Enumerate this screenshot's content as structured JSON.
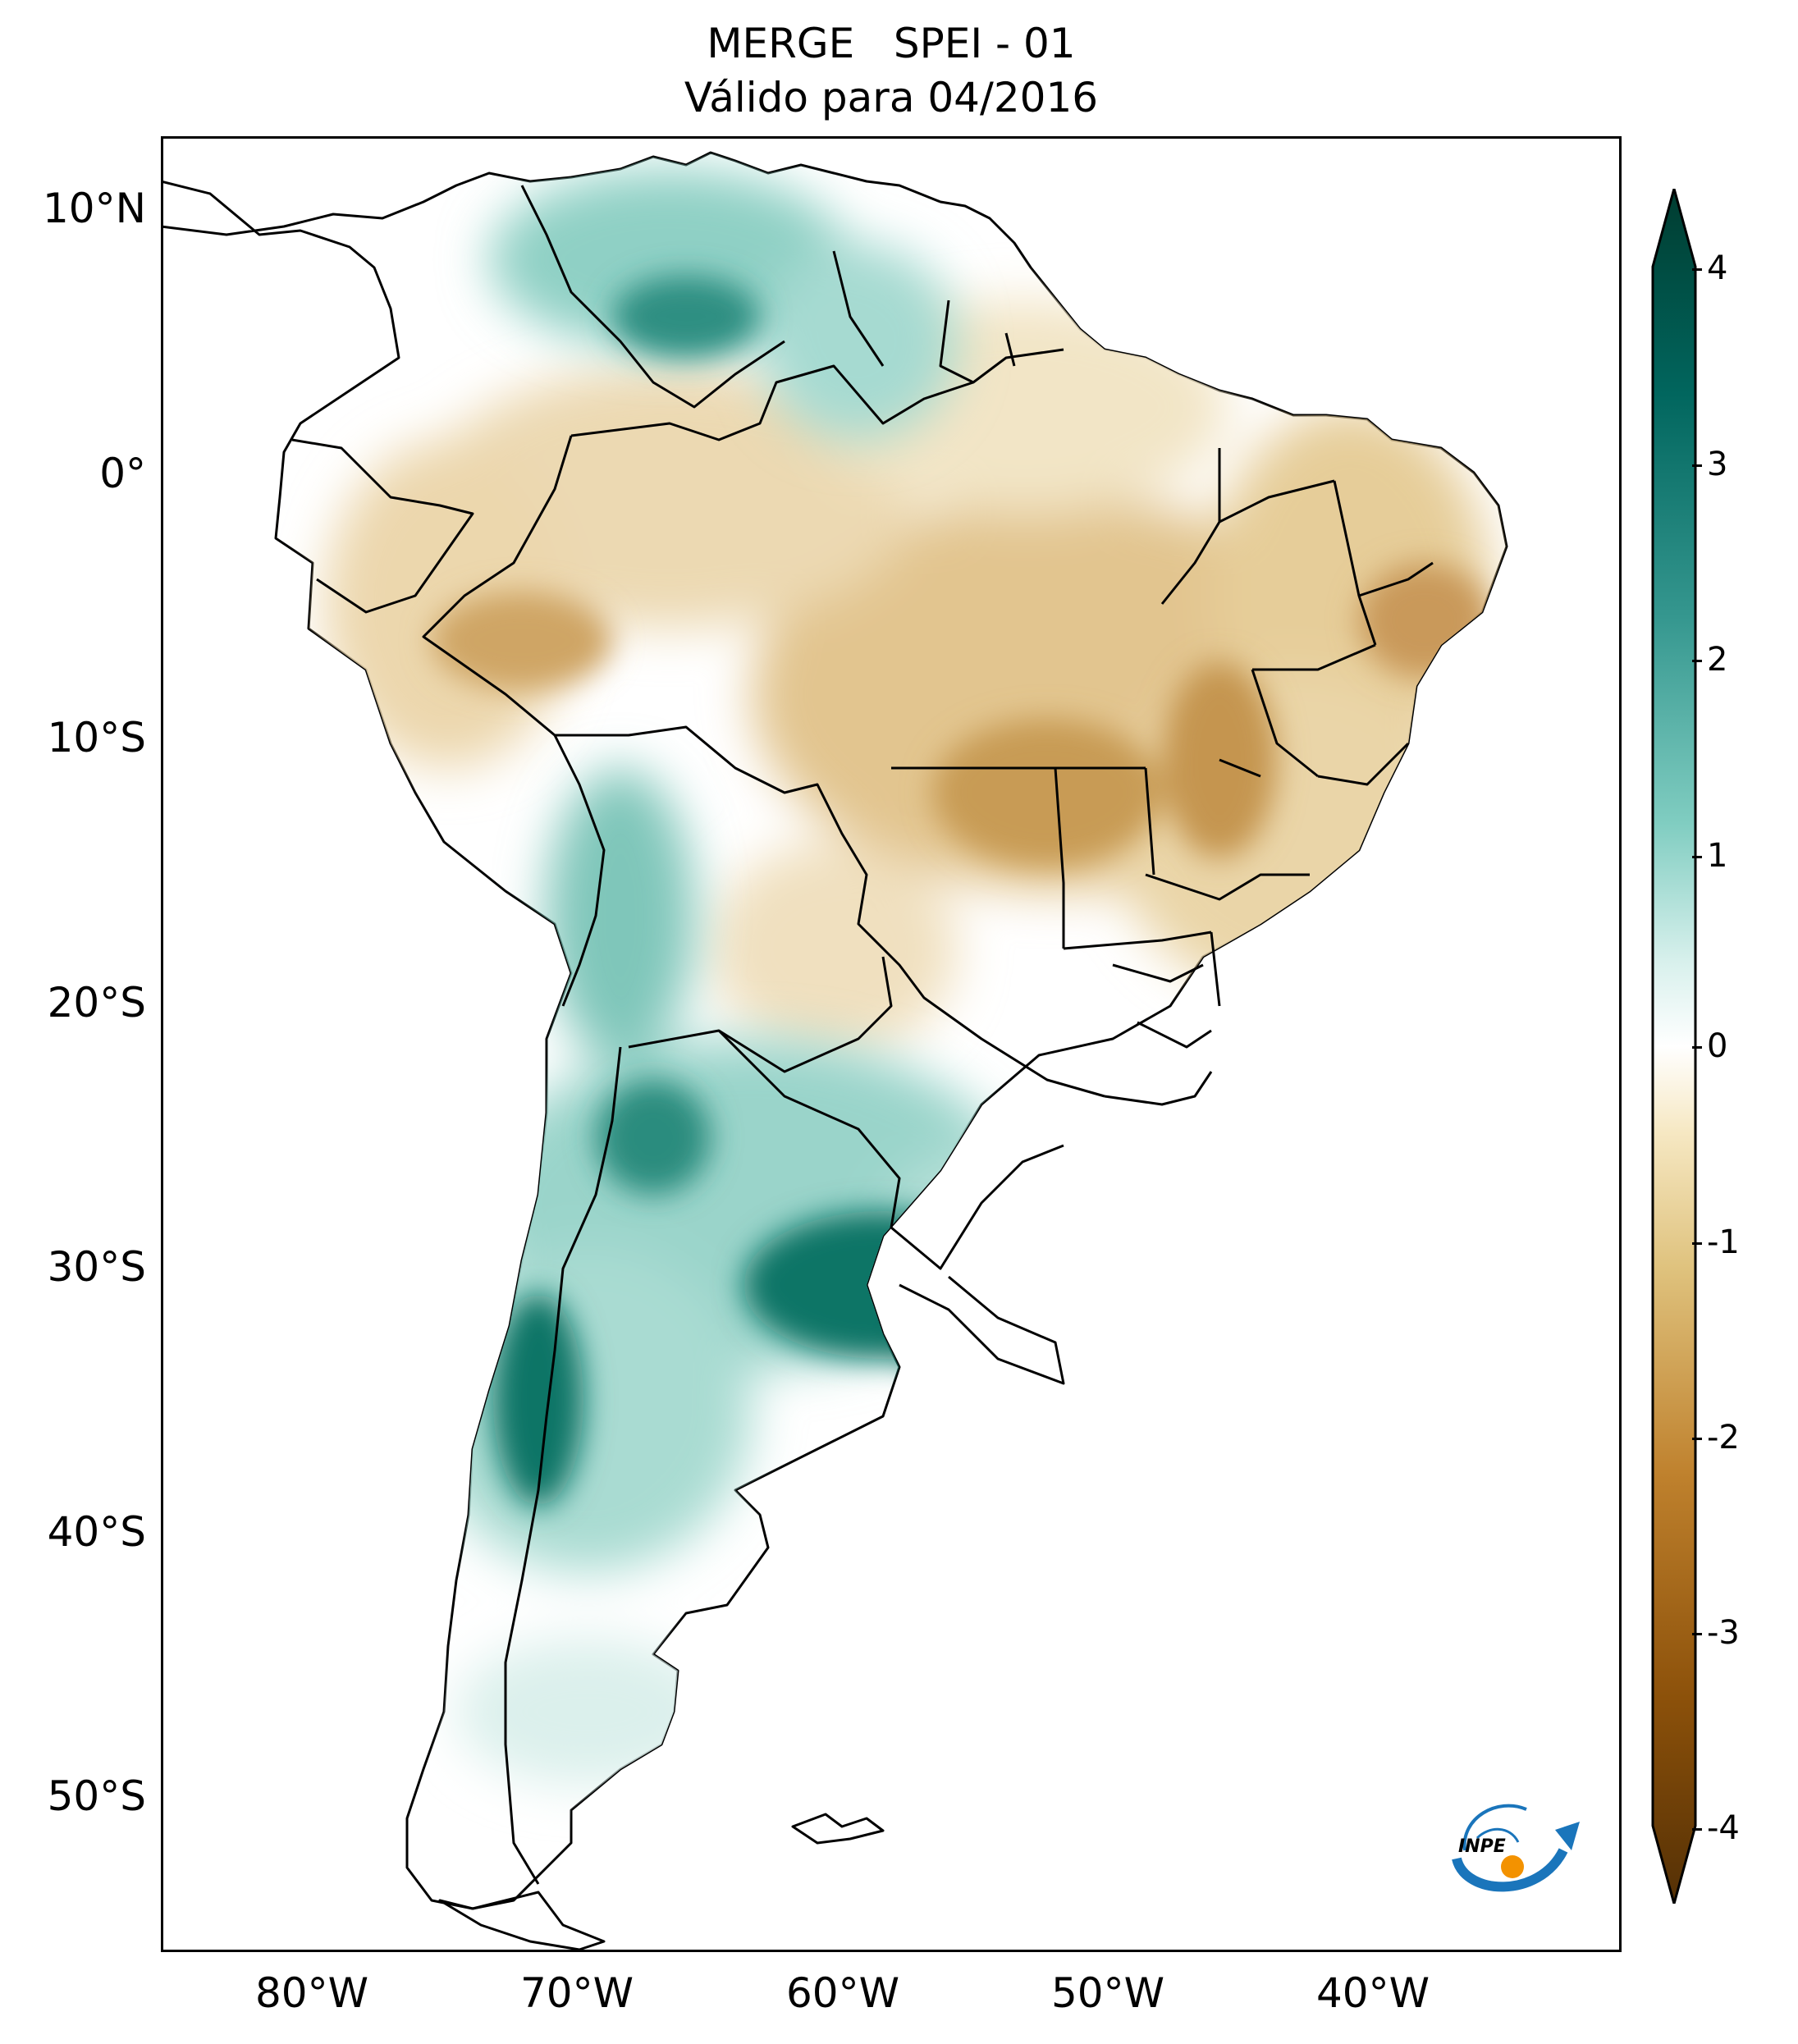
{
  "title": {
    "line1": "MERGE   SPEI - 01",
    "line2": "Válido para 04/2016"
  },
  "axes": {
    "lat_ticks": [
      "10°N",
      "0°",
      "10°S",
      "20°S",
      "30°S",
      "40°S",
      "50°S"
    ],
    "lon_ticks": [
      "80°W",
      "70°W",
      "60°W",
      "50°W",
      "40°W"
    ],
    "lon_range": [
      -85,
      -30
    ],
    "lat_range": [
      -56,
      13
    ]
  },
  "colorbar": {
    "ticks": [
      "4",
      "3",
      "2",
      "1",
      "0",
      "-1",
      "-2",
      "-3",
      "-4"
    ],
    "range": [
      -4,
      4
    ],
    "colors": {
      "high": "#003c30",
      "mid_high": "#35978f",
      "neutral": "#ffffff",
      "mid_low": "#dfc27d",
      "low": "#543005"
    }
  },
  "logo": {
    "text": "INPE"
  },
  "colors": {
    "wet_strong": "#0f7466",
    "wet": "#5fb8ac",
    "wet_light": "#cdebe6",
    "dry_light": "#f2e3c2",
    "dry": "#dcb778",
    "dry_strong": "#b07d36",
    "border": "#000000"
  }
}
